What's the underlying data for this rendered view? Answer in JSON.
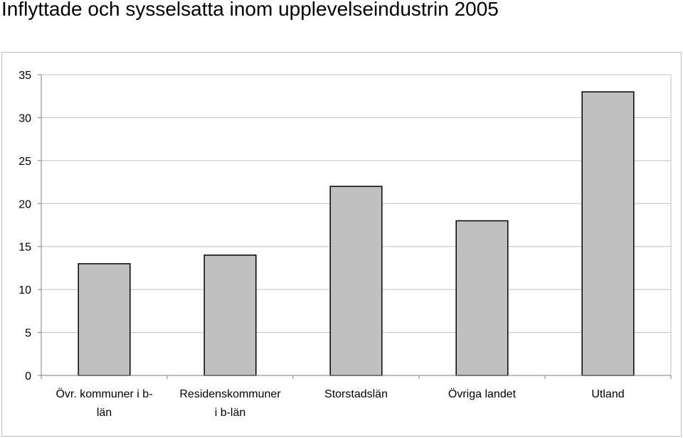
{
  "chart_data": {
    "type": "bar",
    "title": "Inflyttade och sysselsatta inom upplevelseindustrin 2005",
    "categories": [
      [
        "Övr. kommuner i b-",
        "län"
      ],
      [
        "Residenskommuner",
        "i b-län"
      ],
      [
        "Storstadslän"
      ],
      [
        "Övriga landet"
      ],
      [
        "Utland"
      ]
    ],
    "values": [
      13,
      14,
      22,
      18,
      33
    ],
    "ylim": [
      0,
      35
    ],
    "yticks": [
      0,
      5,
      10,
      15,
      20,
      25,
      30,
      35
    ],
    "grid": true,
    "bar_color": "#c0c0c0",
    "grid_color": "#c0c0c0",
    "axis_color": "#808080"
  }
}
